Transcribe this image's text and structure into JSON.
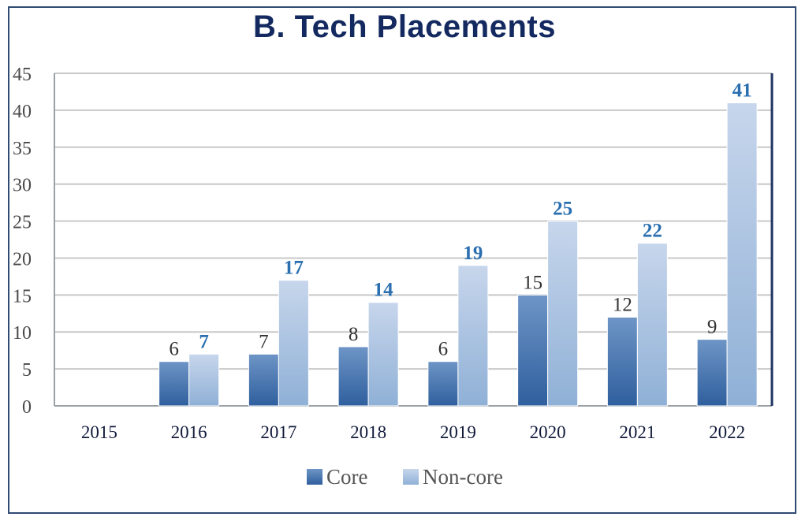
{
  "colors": {
    "frame": "#2f4a73",
    "title": "#13295f",
    "core_top": "#6e95c6",
    "core_bottom": "#2f5f9e",
    "noncore_top": "#c7d6ec",
    "noncore_bottom": "#8fb0d6",
    "noncore_label": "#2a6fb0",
    "grid": "#c8c8c8"
  },
  "chart_data": {
    "type": "bar",
    "title": "B. Tech Placements",
    "xlabel": "",
    "ylabel": "",
    "ylim": [
      0,
      45
    ],
    "yticks": [
      0,
      5,
      10,
      15,
      20,
      25,
      30,
      35,
      40,
      45
    ],
    "grid": true,
    "legend": "bottom",
    "categories": [
      "2015",
      "2016",
      "2017",
      "2018",
      "2019",
      "2020",
      "2021",
      "2022"
    ],
    "series": [
      {
        "name": "Core",
        "values": [
          null,
          6,
          7,
          8,
          6,
          15,
          12,
          9
        ]
      },
      {
        "name": "Non-core",
        "values": [
          null,
          7,
          17,
          14,
          19,
          25,
          22,
          41
        ]
      }
    ]
  }
}
